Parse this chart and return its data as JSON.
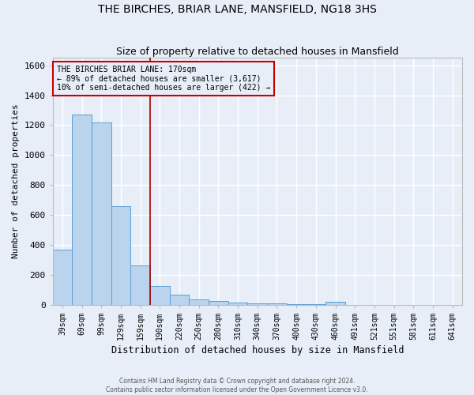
{
  "title": "THE BIRCHES, BRIAR LANE, MANSFIELD, NG18 3HS",
  "subtitle": "Size of property relative to detached houses in Mansfield",
  "xlabel": "Distribution of detached houses by size in Mansfield",
  "ylabel": "Number of detached properties",
  "footer_line1": "Contains HM Land Registry data © Crown copyright and database right 2024.",
  "footer_line2": "Contains public sector information licensed under the Open Government Licence v3.0.",
  "categories": [
    "39sqm",
    "69sqm",
    "99sqm",
    "129sqm",
    "159sqm",
    "190sqm",
    "220sqm",
    "250sqm",
    "280sqm",
    "310sqm",
    "340sqm",
    "370sqm",
    "400sqm",
    "430sqm",
    "460sqm",
    "491sqm",
    "521sqm",
    "551sqm",
    "581sqm",
    "611sqm",
    "641sqm"
  ],
  "values": [
    370,
    1270,
    1220,
    660,
    265,
    125,
    70,
    37,
    25,
    15,
    10,
    8,
    5,
    3,
    18,
    0,
    0,
    0,
    0,
    0,
    0
  ],
  "bar_color": "#bad4ed",
  "bar_edge_color": "#5a9fd4",
  "bg_color": "#e8eef8",
  "grid_color": "#ffffff",
  "annotation_text": "THE BIRCHES BRIAR LANE: 170sqm\n← 89% of detached houses are smaller (3,617)\n10% of semi-detached houses are larger (422) →",
  "annotation_box_edge": "#cc0000",
  "vline_x": 4.5,
  "vline_color": "#aa0000",
  "ylim": [
    0,
    1650
  ],
  "yticks": [
    0,
    200,
    400,
    600,
    800,
    1000,
    1200,
    1400,
    1600
  ]
}
